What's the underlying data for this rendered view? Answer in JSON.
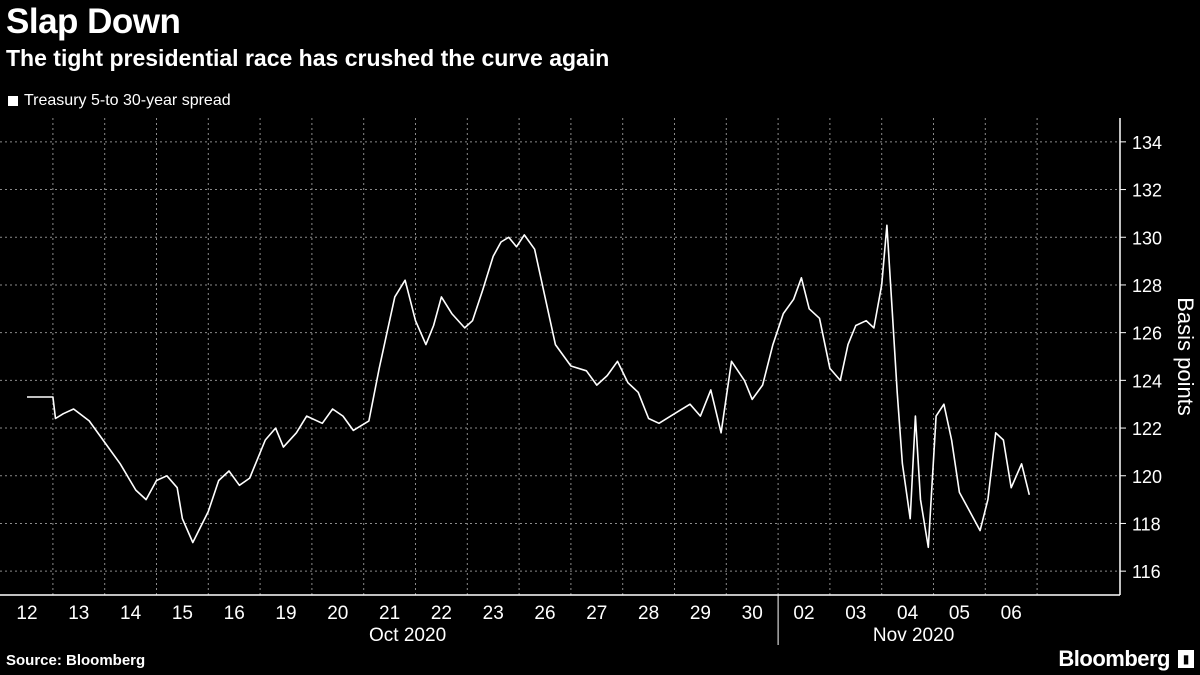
{
  "header": {
    "title": "Slap Down",
    "subtitle": "The tight presidential race has crushed the curve again"
  },
  "legend": {
    "label": "Treasury 5-to 30-year spread"
  },
  "footer": {
    "source": "Source: Bloomberg",
    "brand": "Bloomberg"
  },
  "chart_data": {
    "type": "line",
    "title": "Slap Down",
    "subtitle": "The tight presidential race has crushed the curve again",
    "ylabel": "Basis points",
    "xlabel": "",
    "ylim": [
      115,
      135
    ],
    "yticks": [
      116,
      118,
      120,
      122,
      124,
      126,
      128,
      130,
      132,
      134
    ],
    "grid": true,
    "legend_position": "top-left",
    "x_ticks": [
      "12",
      "13",
      "14",
      "15",
      "16",
      "19",
      "20",
      "21",
      "22",
      "23",
      "26",
      "27",
      "28",
      "29",
      "30",
      "02",
      "03",
      "04",
      "05",
      "06"
    ],
    "month_labels": [
      {
        "label": "Oct 2020",
        "after_tick": "21"
      },
      {
        "label": "Nov 2020",
        "after_tick": "03"
      }
    ],
    "series": [
      {
        "name": "Treasury 5-to 30-year spread",
        "x": [
          0.0,
          0.5,
          0.55,
          0.7,
          0.9,
          1.2,
          1.5,
          1.8,
          2.1,
          2.3,
          2.5,
          2.7,
          2.9,
          3.0,
          3.2,
          3.5,
          3.7,
          3.9,
          4.1,
          4.3,
          4.6,
          4.8,
          4.95,
          5.2,
          5.4,
          5.7,
          5.9,
          6.1,
          6.3,
          6.6,
          6.8,
          6.95,
          7.1,
          7.3,
          7.5,
          7.7,
          7.85,
          8.0,
          8.2,
          8.45,
          8.6,
          8.8,
          9.0,
          9.15,
          9.3,
          9.45,
          9.6,
          9.8,
          10.0,
          10.2,
          10.5,
          10.8,
          11.0,
          11.2,
          11.4,
          11.6,
          11.8,
          12.0,
          12.2,
          12.5,
          12.8,
          13.0,
          13.2,
          13.4,
          13.6,
          13.85,
          14.0,
          14.2,
          14.4,
          14.6,
          14.8,
          14.95,
          15.1,
          15.3,
          15.5,
          15.7,
          15.85,
          16.0,
          16.2,
          16.35,
          16.5,
          16.6,
          16.7,
          16.8,
          16.9,
          17.05,
          17.15,
          17.25,
          17.4,
          17.55,
          17.7,
          17.85,
          18.0,
          18.2,
          18.4,
          18.55,
          18.7,
          18.85,
          19.0,
          19.2,
          19.35
        ],
        "values": [
          123.3,
          123.3,
          122.4,
          122.6,
          122.8,
          122.3,
          121.4,
          120.5,
          119.4,
          119.0,
          119.8,
          120.0,
          119.5,
          118.2,
          117.2,
          118.5,
          119.8,
          120.2,
          119.6,
          119.9,
          121.5,
          122.0,
          121.2,
          121.8,
          122.5,
          122.2,
          122.8,
          122.5,
          121.9,
          122.3,
          124.5,
          126.0,
          127.5,
          128.2,
          126.5,
          125.5,
          126.3,
          127.5,
          126.8,
          126.2,
          126.5,
          127.8,
          129.2,
          129.8,
          130.0,
          129.6,
          130.1,
          129.5,
          127.5,
          125.5,
          124.6,
          124.4,
          123.8,
          124.2,
          124.8,
          123.9,
          123.5,
          122.4,
          122.2,
          122.6,
          123.0,
          122.5,
          123.6,
          121.8,
          124.8,
          124.0,
          123.2,
          123.8,
          125.5,
          126.8,
          127.4,
          128.3,
          127.0,
          126.6,
          124.5,
          124.0,
          125.5,
          126.3,
          126.5,
          126.2,
          128.0,
          130.5,
          127.0,
          123.5,
          120.5,
          118.2,
          122.5,
          119.0,
          117.0,
          122.5,
          123.0,
          121.5,
          119.3,
          118.5,
          117.7,
          119.0,
          121.8,
          121.5,
          119.5,
          120.5,
          119.2
        ]
      }
    ]
  }
}
